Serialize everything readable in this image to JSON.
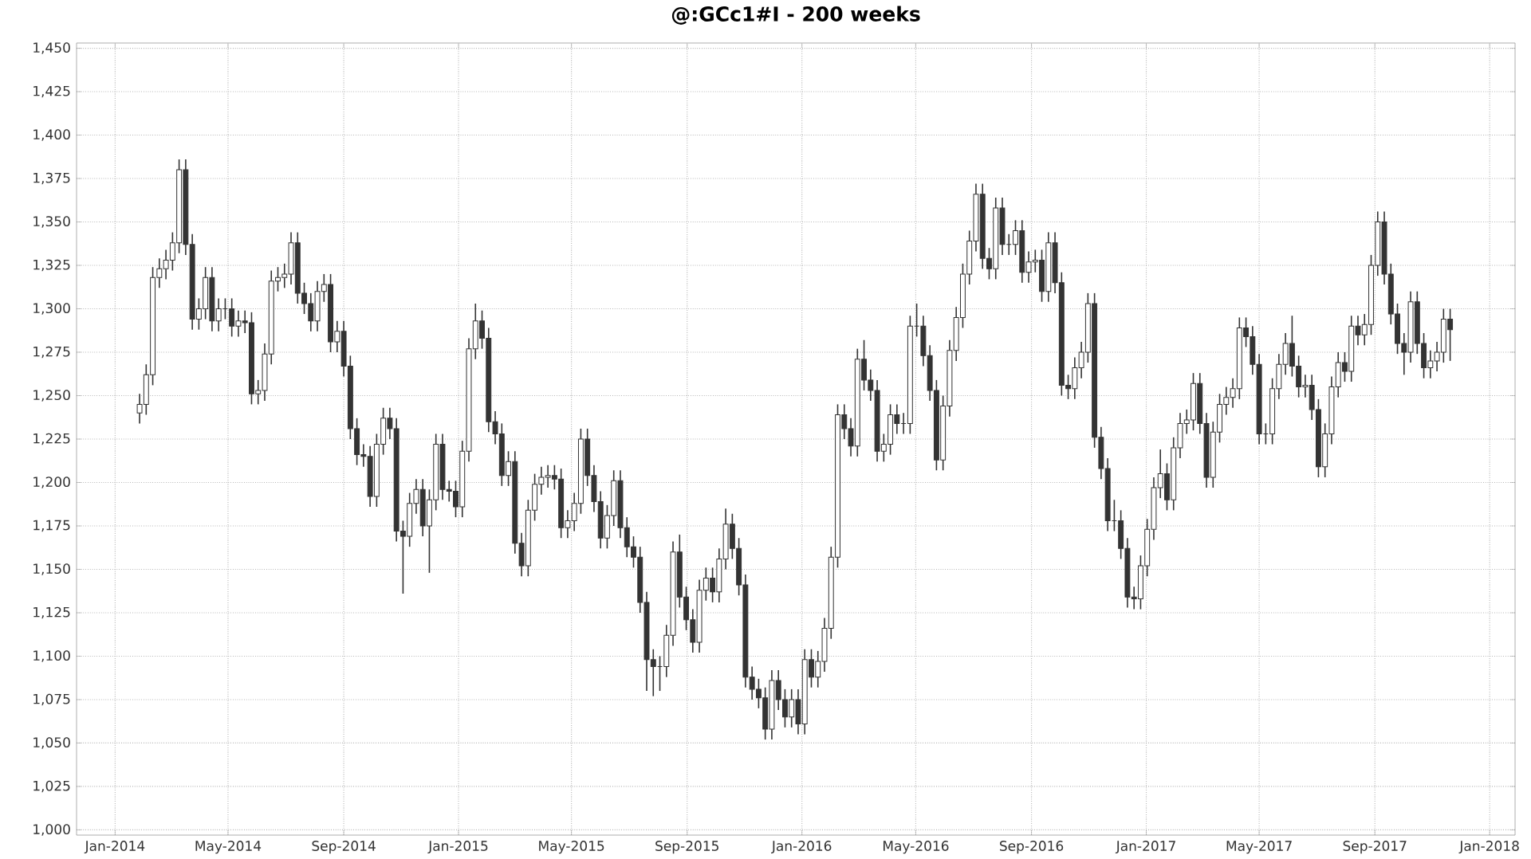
{
  "chart_data": {
    "type": "candlestick",
    "title": "@:GCc1#I - 200 weeks",
    "color": "#333333",
    "grid": true,
    "xlim": [
      "2013-11-21",
      "2018-01-28"
    ],
    "ylim": [
      997,
      1453
    ],
    "xticks": [
      {
        "value": "2014-01-01",
        "label": "Jan-2014"
      },
      {
        "value": "2014-05-01",
        "label": "May-2014"
      },
      {
        "value": "2014-09-01",
        "label": "Sep-2014"
      },
      {
        "value": "2015-01-01",
        "label": "Jan-2015"
      },
      {
        "value": "2015-05-01",
        "label": "May-2015"
      },
      {
        "value": "2015-09-01",
        "label": "Sep-2015"
      },
      {
        "value": "2016-01-01",
        "label": "Jan-2016"
      },
      {
        "value": "2016-05-01",
        "label": "May-2016"
      },
      {
        "value": "2016-09-01",
        "label": "Sep-2016"
      },
      {
        "value": "2017-01-01",
        "label": "Jan-2017"
      },
      {
        "value": "2017-05-01",
        "label": "May-2017"
      },
      {
        "value": "2017-09-01",
        "label": "Sep-2017"
      },
      {
        "value": "2018-01-01",
        "label": "Jan-2018"
      }
    ],
    "yticks": [
      {
        "value": 1000,
        "label": "1,000"
      },
      {
        "value": 1025,
        "label": "1,025"
      },
      {
        "value": 1050,
        "label": "1,050"
      },
      {
        "value": 1075,
        "label": "1,075"
      },
      {
        "value": 1100,
        "label": "1,100"
      },
      {
        "value": 1125,
        "label": "1,125"
      },
      {
        "value": 1150,
        "label": "1,150"
      },
      {
        "value": 1175,
        "label": "1,175"
      },
      {
        "value": 1200,
        "label": "1,200"
      },
      {
        "value": 1225,
        "label": "1,225"
      },
      {
        "value": 1250,
        "label": "1,250"
      },
      {
        "value": 1275,
        "label": "1,275"
      },
      {
        "value": 1300,
        "label": "1,300"
      },
      {
        "value": 1325,
        "label": "1,325"
      },
      {
        "value": 1350,
        "label": "1,350"
      },
      {
        "value": 1375,
        "label": "1,375"
      },
      {
        "value": 1400,
        "label": "1,400"
      },
      {
        "value": 1425,
        "label": "1,425"
      },
      {
        "value": 1450,
        "label": "1,450"
      }
    ],
    "x": [
      "2014-01-27",
      "2014-02-03",
      "2014-02-10",
      "2014-02-17",
      "2014-02-24",
      "2014-03-03",
      "2014-03-10",
      "2014-03-17",
      "2014-03-24",
      "2014-03-31",
      "2014-04-07",
      "2014-04-14",
      "2014-04-21",
      "2014-04-28",
      "2014-05-05",
      "2014-05-12",
      "2014-05-19",
      "2014-05-26",
      "2014-06-02",
      "2014-06-09",
      "2014-06-16",
      "2014-06-23",
      "2014-06-30",
      "2014-07-07",
      "2014-07-14",
      "2014-07-21",
      "2014-07-28",
      "2014-08-04",
      "2014-08-11",
      "2014-08-18",
      "2014-08-25",
      "2014-09-01",
      "2014-09-08",
      "2014-09-15",
      "2014-09-22",
      "2014-09-29",
      "2014-10-06",
      "2014-10-13",
      "2014-10-20",
      "2014-10-27",
      "2014-11-03",
      "2014-11-10",
      "2014-11-17",
      "2014-11-24",
      "2014-12-01",
      "2014-12-08",
      "2014-12-15",
      "2014-12-22",
      "2014-12-29",
      "2015-01-05",
      "2015-01-12",
      "2015-01-19",
      "2015-01-26",
      "2015-02-02",
      "2015-02-09",
      "2015-02-16",
      "2015-02-23",
      "2015-03-02",
      "2015-03-09",
      "2015-03-16",
      "2015-03-23",
      "2015-03-30",
      "2015-04-06",
      "2015-04-13",
      "2015-04-20",
      "2015-04-27",
      "2015-05-04",
      "2015-05-11",
      "2015-05-18",
      "2015-05-25",
      "2015-06-01",
      "2015-06-08",
      "2015-06-15",
      "2015-06-22",
      "2015-06-29",
      "2015-07-06",
      "2015-07-13",
      "2015-07-20",
      "2015-07-27",
      "2015-08-03",
      "2015-08-10",
      "2015-08-17",
      "2015-08-24",
      "2015-08-31",
      "2015-09-07",
      "2015-09-14",
      "2015-09-21",
      "2015-09-28",
      "2015-10-05",
      "2015-10-12",
      "2015-10-19",
      "2015-10-26",
      "2015-11-02",
      "2015-11-09",
      "2015-11-16",
      "2015-11-23",
      "2015-11-30",
      "2015-12-07",
      "2015-12-14",
      "2015-12-21",
      "2015-12-28",
      "2016-01-04",
      "2016-01-11",
      "2016-01-18",
      "2016-01-25",
      "2016-02-01",
      "2016-02-08",
      "2016-02-15",
      "2016-02-22",
      "2016-02-29",
      "2016-03-07",
      "2016-03-14",
      "2016-03-21",
      "2016-03-28",
      "2016-04-04",
      "2016-04-11",
      "2016-04-18",
      "2016-04-25",
      "2016-05-02",
      "2016-05-09",
      "2016-05-16",
      "2016-05-23",
      "2016-05-30",
      "2016-06-06",
      "2016-06-13",
      "2016-06-20",
      "2016-06-27",
      "2016-07-04",
      "2016-07-11",
      "2016-07-18",
      "2016-07-25",
      "2016-08-01",
      "2016-08-08",
      "2016-08-15",
      "2016-08-22",
      "2016-08-29",
      "2016-09-05",
      "2016-09-12",
      "2016-09-19",
      "2016-09-26",
      "2016-10-03",
      "2016-10-10",
      "2016-10-17",
      "2016-10-24",
      "2016-10-31",
      "2016-11-07",
      "2016-11-14",
      "2016-11-21",
      "2016-11-28",
      "2016-12-05",
      "2016-12-12",
      "2016-12-19",
      "2016-12-26",
      "2017-01-02",
      "2017-01-09",
      "2017-01-16",
      "2017-01-23",
      "2017-01-30",
      "2017-02-06",
      "2017-02-13",
      "2017-02-20",
      "2017-02-27",
      "2017-03-06",
      "2017-03-13",
      "2017-03-20",
      "2017-03-27",
      "2017-04-03",
      "2017-04-10",
      "2017-04-17",
      "2017-04-24",
      "2017-05-01",
      "2017-05-08",
      "2017-05-15",
      "2017-05-22",
      "2017-05-29",
      "2017-06-05",
      "2017-06-12",
      "2017-06-19",
      "2017-06-26",
      "2017-07-03",
      "2017-07-10",
      "2017-07-17",
      "2017-07-24",
      "2017-07-31",
      "2017-08-07",
      "2017-08-14",
      "2017-08-21",
      "2017-08-28",
      "2017-09-04",
      "2017-09-11",
      "2017-09-18",
      "2017-09-25",
      "2017-10-02",
      "2017-10-09",
      "2017-10-16",
      "2017-10-23",
      "2017-10-30",
      "2017-11-06",
      "2017-11-13",
      "2017-11-20"
    ],
    "ohlc": [
      [
        1240,
        1251,
        1234,
        1245
      ],
      [
        1245,
        1268,
        1239,
        1262
      ],
      [
        1262,
        1324,
        1256,
        1318
      ],
      [
        1318,
        1329,
        1312,
        1323
      ],
      [
        1323,
        1334,
        1317,
        1328
      ],
      [
        1328,
        1344,
        1322,
        1338
      ],
      [
        1338,
        1386,
        1332,
        1380
      ],
      [
        1380,
        1386,
        1331,
        1337
      ],
      [
        1337,
        1343,
        1288,
        1294
      ],
      [
        1294,
        1306,
        1288,
        1300
      ],
      [
        1300,
        1324,
        1294,
        1318
      ],
      [
        1318,
        1324,
        1287,
        1293
      ],
      [
        1293,
        1306,
        1287,
        1300
      ],
      [
        1300,
        1306,
        1294,
        1300
      ],
      [
        1300,
        1306,
        1284,
        1290
      ],
      [
        1290,
        1299,
        1284,
        1293
      ],
      [
        1293,
        1299,
        1286,
        1292
      ],
      [
        1292,
        1298,
        1245,
        1251
      ],
      [
        1251,
        1259,
        1245,
        1253
      ],
      [
        1253,
        1280,
        1247,
        1274
      ],
      [
        1274,
        1322,
        1268,
        1316
      ],
      [
        1316,
        1324,
        1310,
        1318
      ],
      [
        1318,
        1326,
        1312,
        1320
      ],
      [
        1320,
        1344,
        1314,
        1338
      ],
      [
        1338,
        1344,
        1303,
        1309
      ],
      [
        1309,
        1315,
        1297,
        1303
      ],
      [
        1303,
        1309,
        1287,
        1293
      ],
      [
        1293,
        1316,
        1287,
        1310
      ],
      [
        1310,
        1320,
        1304,
        1314
      ],
      [
        1314,
        1320,
        1275,
        1281
      ],
      [
        1281,
        1293,
        1275,
        1287
      ],
      [
        1287,
        1293,
        1261,
        1267
      ],
      [
        1267,
        1273,
        1225,
        1231
      ],
      [
        1231,
        1237,
        1210,
        1216
      ],
      [
        1216,
        1222,
        1209,
        1215
      ],
      [
        1215,
        1221,
        1186,
        1192
      ],
      [
        1192,
        1228,
        1186,
        1222
      ],
      [
        1222,
        1243,
        1216,
        1237
      ],
      [
        1237,
        1243,
        1225,
        1231
      ],
      [
        1231,
        1237,
        1166,
        1172
      ],
      [
        1172,
        1178,
        1136,
        1169
      ],
      [
        1169,
        1194,
        1163,
        1188
      ],
      [
        1188,
        1202,
        1182,
        1196
      ],
      [
        1196,
        1202,
        1169,
        1175
      ],
      [
        1175,
        1196,
        1148,
        1190
      ],
      [
        1190,
        1228,
        1184,
        1222
      ],
      [
        1222,
        1228,
        1190,
        1196
      ],
      [
        1196,
        1201,
        1189,
        1195
      ],
      [
        1195,
        1201,
        1180,
        1186
      ],
      [
        1186,
        1224,
        1180,
        1218
      ],
      [
        1218,
        1283,
        1212,
        1277
      ],
      [
        1277,
        1303,
        1271,
        1293
      ],
      [
        1293,
        1299,
        1277,
        1283
      ],
      [
        1283,
        1289,
        1229,
        1235
      ],
      [
        1235,
        1241,
        1222,
        1228
      ],
      [
        1228,
        1234,
        1198,
        1204
      ],
      [
        1204,
        1218,
        1198,
        1212
      ],
      [
        1212,
        1218,
        1159,
        1165
      ],
      [
        1165,
        1171,
        1146,
        1152
      ],
      [
        1152,
        1190,
        1146,
        1184
      ],
      [
        1184,
        1205,
        1178,
        1199
      ],
      [
        1199,
        1209,
        1193,
        1203
      ],
      [
        1203,
        1210,
        1197,
        1204
      ],
      [
        1204,
        1210,
        1196,
        1202
      ],
      [
        1202,
        1208,
        1168,
        1174
      ],
      [
        1174,
        1184,
        1168,
        1178
      ],
      [
        1178,
        1194,
        1172,
        1188
      ],
      [
        1188,
        1231,
        1182,
        1225
      ],
      [
        1225,
        1231,
        1198,
        1204
      ],
      [
        1204,
        1210,
        1183,
        1189
      ],
      [
        1189,
        1195,
        1162,
        1168
      ],
      [
        1168,
        1187,
        1162,
        1181
      ],
      [
        1181,
        1207,
        1175,
        1201
      ],
      [
        1201,
        1207,
        1168,
        1174
      ],
      [
        1174,
        1180,
        1157,
        1163
      ],
      [
        1163,
        1169,
        1151,
        1157
      ],
      [
        1157,
        1163,
        1125,
        1131
      ],
      [
        1131,
        1137,
        1080,
        1098
      ],
      [
        1098,
        1104,
        1077,
        1094
      ],
      [
        1094,
        1100,
        1080,
        1094
      ],
      [
        1094,
        1118,
        1088,
        1112
      ],
      [
        1112,
        1166,
        1106,
        1160
      ],
      [
        1160,
        1170,
        1128,
        1134
      ],
      [
        1134,
        1140,
        1115,
        1121
      ],
      [
        1121,
        1127,
        1102,
        1108
      ],
      [
        1108,
        1144,
        1102,
        1138
      ],
      [
        1138,
        1151,
        1132,
        1145
      ],
      [
        1145,
        1151,
        1131,
        1137
      ],
      [
        1137,
        1162,
        1131,
        1156
      ],
      [
        1156,
        1185,
        1150,
        1176
      ],
      [
        1176,
        1182,
        1156,
        1162
      ],
      [
        1162,
        1168,
        1135,
        1141
      ],
      [
        1141,
        1147,
        1082,
        1088
      ],
      [
        1088,
        1094,
        1075,
        1081
      ],
      [
        1081,
        1087,
        1070,
        1076
      ],
      [
        1076,
        1082,
        1052,
        1058
      ],
      [
        1058,
        1092,
        1052,
        1086
      ],
      [
        1086,
        1092,
        1069,
        1075
      ],
      [
        1075,
        1081,
        1059,
        1065
      ],
      [
        1065,
        1081,
        1059,
        1075
      ],
      [
        1075,
        1081,
        1055,
        1061
      ],
      [
        1061,
        1104,
        1055,
        1098
      ],
      [
        1098,
        1104,
        1082,
        1088
      ],
      [
        1088,
        1103,
        1082,
        1097
      ],
      [
        1097,
        1122,
        1091,
        1116
      ],
      [
        1116,
        1163,
        1110,
        1157
      ],
      [
        1157,
        1245,
        1151,
        1239
      ],
      [
        1239,
        1245,
        1225,
        1231
      ],
      [
        1231,
        1237,
        1215,
        1221
      ],
      [
        1221,
        1277,
        1215,
        1271
      ],
      [
        1271,
        1282,
        1253,
        1259
      ],
      [
        1259,
        1265,
        1247,
        1253
      ],
      [
        1253,
        1259,
        1212,
        1218
      ],
      [
        1218,
        1228,
        1212,
        1222
      ],
      [
        1222,
        1245,
        1216,
        1239
      ],
      [
        1239,
        1245,
        1228,
        1234
      ],
      [
        1234,
        1240,
        1228,
        1234
      ],
      [
        1234,
        1296,
        1228,
        1290
      ],
      [
        1290,
        1303,
        1284,
        1290
      ],
      [
        1290,
        1296,
        1267,
        1273
      ],
      [
        1273,
        1279,
        1247,
        1253
      ],
      [
        1253,
        1259,
        1207,
        1213
      ],
      [
        1213,
        1250,
        1207,
        1244
      ],
      [
        1244,
        1282,
        1238,
        1276
      ],
      [
        1276,
        1301,
        1270,
        1295
      ],
      [
        1295,
        1326,
        1289,
        1320
      ],
      [
        1320,
        1345,
        1314,
        1339
      ],
      [
        1339,
        1372,
        1333,
        1366
      ],
      [
        1366,
        1372,
        1323,
        1329
      ],
      [
        1329,
        1335,
        1317,
        1323
      ],
      [
        1323,
        1364,
        1317,
        1358
      ],
      [
        1358,
        1364,
        1331,
        1337
      ],
      [
        1337,
        1343,
        1331,
        1337
      ],
      [
        1337,
        1351,
        1331,
        1345
      ],
      [
        1345,
        1351,
        1315,
        1321
      ],
      [
        1321,
        1333,
        1315,
        1327
      ],
      [
        1327,
        1334,
        1321,
        1328
      ],
      [
        1328,
        1334,
        1304,
        1310
      ],
      [
        1310,
        1344,
        1304,
        1338
      ],
      [
        1338,
        1344,
        1309,
        1315
      ],
      [
        1315,
        1321,
        1250,
        1256
      ],
      [
        1256,
        1262,
        1248,
        1254
      ],
      [
        1254,
        1272,
        1248,
        1266
      ],
      [
        1266,
        1281,
        1260,
        1275
      ],
      [
        1275,
        1309,
        1269,
        1303
      ],
      [
        1303,
        1309,
        1220,
        1226
      ],
      [
        1226,
        1232,
        1202,
        1208
      ],
      [
        1208,
        1214,
        1172,
        1178
      ],
      [
        1178,
        1190,
        1172,
        1178
      ],
      [
        1178,
        1184,
        1156,
        1162
      ],
      [
        1162,
        1168,
        1128,
        1134
      ],
      [
        1134,
        1140,
        1127,
        1133
      ],
      [
        1133,
        1158,
        1127,
        1152
      ],
      [
        1152,
        1179,
        1146,
        1173
      ],
      [
        1173,
        1203,
        1167,
        1197
      ],
      [
        1197,
        1219,
        1191,
        1205
      ],
      [
        1205,
        1211,
        1184,
        1190
      ],
      [
        1190,
        1226,
        1184,
        1220
      ],
      [
        1220,
        1240,
        1214,
        1234
      ],
      [
        1234,
        1242,
        1228,
        1236
      ],
      [
        1236,
        1263,
        1230,
        1257
      ],
      [
        1257,
        1263,
        1228,
        1234
      ],
      [
        1234,
        1240,
        1197,
        1203
      ],
      [
        1203,
        1235,
        1197,
        1229
      ],
      [
        1229,
        1251,
        1223,
        1245
      ],
      [
        1245,
        1255,
        1239,
        1249
      ],
      [
        1249,
        1260,
        1243,
        1254
      ],
      [
        1254,
        1295,
        1248,
        1289
      ],
      [
        1289,
        1295,
        1278,
        1284
      ],
      [
        1284,
        1290,
        1262,
        1268
      ],
      [
        1268,
        1274,
        1222,
        1228
      ],
      [
        1228,
        1234,
        1222,
        1228
      ],
      [
        1228,
        1260,
        1222,
        1254
      ],
      [
        1254,
        1274,
        1248,
        1268
      ],
      [
        1268,
        1286,
        1262,
        1280
      ],
      [
        1280,
        1296,
        1261,
        1267
      ],
      [
        1267,
        1273,
        1249,
        1255
      ],
      [
        1255,
        1262,
        1249,
        1256
      ],
      [
        1256,
        1262,
        1236,
        1242
      ],
      [
        1242,
        1248,
        1203,
        1209
      ],
      [
        1209,
        1234,
        1203,
        1228
      ],
      [
        1228,
        1261,
        1222,
        1255
      ],
      [
        1255,
        1275,
        1249,
        1269
      ],
      [
        1269,
        1275,
        1258,
        1264
      ],
      [
        1264,
        1296,
        1258,
        1290
      ],
      [
        1290,
        1296,
        1279,
        1285
      ],
      [
        1285,
        1297,
        1279,
        1291
      ],
      [
        1291,
        1331,
        1285,
        1325
      ],
      [
        1325,
        1356,
        1319,
        1350
      ],
      [
        1350,
        1356,
        1314,
        1320
      ],
      [
        1320,
        1326,
        1291,
        1297
      ],
      [
        1297,
        1303,
        1274,
        1280
      ],
      [
        1280,
        1286,
        1262,
        1275
      ],
      [
        1275,
        1310,
        1269,
        1304
      ],
      [
        1304,
        1310,
        1274,
        1280
      ],
      [
        1280,
        1286,
        1260,
        1266
      ],
      [
        1266,
        1276,
        1260,
        1270
      ],
      [
        1270,
        1281,
        1264,
        1275
      ],
      [
        1275,
        1300,
        1269,
        1294
      ],
      [
        1294,
        1300,
        1270,
        1288
      ]
    ]
  }
}
